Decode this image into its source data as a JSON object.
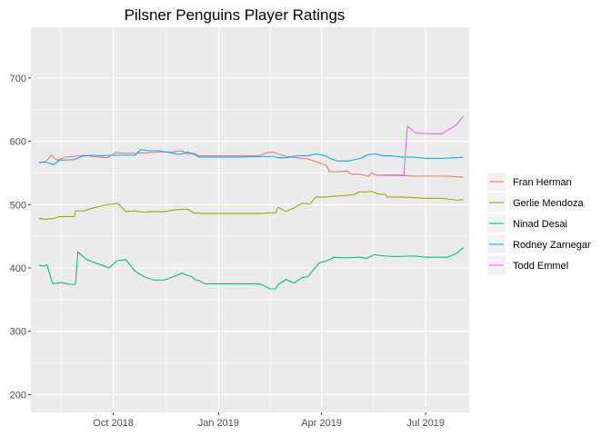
{
  "chart_data": {
    "type": "line",
    "title": "Pilsner Penguins Player Ratings",
    "xlabel": "",
    "ylabel": "",
    "xlim": [
      "2018-07-21",
      "2019-08-08"
    ],
    "ylim": [
      172,
      780
    ],
    "x_ticks": [
      {
        "date": "2018-10-01",
        "label": "Oct 2018"
      },
      {
        "date": "2019-01-01",
        "label": "Jan 2019"
      },
      {
        "date": "2019-04-01",
        "label": "Apr 2019"
      },
      {
        "date": "2019-07-01",
        "label": "Jul 2019"
      }
    ],
    "y_ticks": [
      200,
      300,
      400,
      500,
      600,
      700
    ],
    "grid": true,
    "legend_position": "right",
    "colors": {
      "panel_bg": "#EBEBEB",
      "grid": "#FFFFFF",
      "Fran Herman": "#F8766D",
      "Gerlie Mendoza": "#A3A500",
      "Ninad Desai": "#00BF7D",
      "Rodney Zarnegar": "#00B0F6",
      "Todd Emmel": "#E76BF3"
    },
    "series": [
      {
        "name": "Fran Herman",
        "points": [
          [
            "2018-07-28",
            566
          ],
          [
            "2018-08-03",
            568
          ],
          [
            "2018-08-08",
            578
          ],
          [
            "2018-08-13",
            570
          ],
          [
            "2018-08-20",
            575
          ],
          [
            "2018-08-28",
            576
          ],
          [
            "2018-09-05",
            578
          ],
          [
            "2018-09-12",
            576
          ],
          [
            "2018-09-19",
            575
          ],
          [
            "2018-09-26",
            574
          ],
          [
            "2018-10-03",
            582
          ],
          [
            "2018-10-10",
            581
          ],
          [
            "2018-10-20",
            581
          ],
          [
            "2018-10-31",
            582
          ],
          [
            "2018-11-10",
            583
          ],
          [
            "2018-11-20",
            583
          ],
          [
            "2018-11-30",
            585
          ],
          [
            "2018-12-05",
            580
          ],
          [
            "2018-12-10",
            581
          ],
          [
            "2018-12-15",
            577
          ],
          [
            "2018-12-25",
            577
          ],
          [
            "2019-01-10",
            577
          ],
          [
            "2019-01-25",
            577
          ],
          [
            "2019-02-05",
            577
          ],
          [
            "2019-02-12",
            582
          ],
          [
            "2019-02-18",
            583
          ],
          [
            "2019-02-22",
            580
          ],
          [
            "2019-03-01",
            576
          ],
          [
            "2019-03-10",
            574
          ],
          [
            "2019-03-20",
            572
          ],
          [
            "2019-03-30",
            566
          ],
          [
            "2019-04-05",
            562
          ],
          [
            "2019-04-08",
            552
          ],
          [
            "2019-04-15",
            552
          ],
          [
            "2019-04-23",
            553
          ],
          [
            "2019-04-27",
            548
          ],
          [
            "2019-05-05",
            548
          ],
          [
            "2019-05-12",
            545
          ],
          [
            "2019-05-15",
            550
          ],
          [
            "2019-05-18",
            547
          ],
          [
            "2019-05-25",
            546
          ],
          [
            "2019-06-10",
            546
          ],
          [
            "2019-06-20",
            545
          ],
          [
            "2019-07-01",
            545
          ],
          [
            "2019-07-20",
            545
          ],
          [
            "2019-07-28",
            544
          ],
          [
            "2019-08-03",
            543
          ]
        ]
      },
      {
        "name": "Gerlie Mendoza",
        "points": [
          [
            "2018-07-28",
            478
          ],
          [
            "2018-08-03",
            477
          ],
          [
            "2018-08-10",
            478
          ],
          [
            "2018-08-15",
            481
          ],
          [
            "2018-08-22",
            481
          ],
          [
            "2018-08-28",
            481
          ],
          [
            "2018-08-29",
            490
          ],
          [
            "2018-09-05",
            490
          ],
          [
            "2018-09-12",
            494
          ],
          [
            "2018-09-19",
            497
          ],
          [
            "2018-09-26",
            500
          ],
          [
            "2018-10-05",
            502
          ],
          [
            "2018-10-12",
            489
          ],
          [
            "2018-10-20",
            490
          ],
          [
            "2018-10-28",
            488
          ],
          [
            "2018-11-05",
            489
          ],
          [
            "2018-11-15",
            489
          ],
          [
            "2018-11-25",
            492
          ],
          [
            "2018-12-05",
            493
          ],
          [
            "2018-12-10",
            487
          ],
          [
            "2018-12-20",
            486
          ],
          [
            "2019-01-05",
            486
          ],
          [
            "2019-01-20",
            486
          ],
          [
            "2019-02-05",
            486
          ],
          [
            "2019-02-15",
            487
          ],
          [
            "2019-02-20",
            487
          ],
          [
            "2019-02-22",
            496
          ],
          [
            "2019-03-01",
            489
          ],
          [
            "2019-03-08",
            495
          ],
          [
            "2019-03-15",
            502
          ],
          [
            "2019-03-22",
            501
          ],
          [
            "2019-03-27",
            512
          ],
          [
            "2019-04-05",
            512
          ],
          [
            "2019-04-10",
            513
          ],
          [
            "2019-04-20",
            514
          ],
          [
            "2019-04-30",
            516
          ],
          [
            "2019-05-03",
            520
          ],
          [
            "2019-05-10",
            520
          ],
          [
            "2019-05-15",
            521
          ],
          [
            "2019-05-20",
            517
          ],
          [
            "2019-05-27",
            516
          ],
          [
            "2019-05-28",
            512
          ],
          [
            "2019-06-10",
            512
          ],
          [
            "2019-06-20",
            511
          ],
          [
            "2019-07-01",
            510
          ],
          [
            "2019-07-15",
            510
          ],
          [
            "2019-07-28",
            507
          ],
          [
            "2019-08-03",
            508
          ]
        ]
      },
      {
        "name": "Ninad Desai",
        "points": [
          [
            "2018-07-28",
            404
          ],
          [
            "2018-08-01",
            403
          ],
          [
            "2018-08-04",
            405
          ],
          [
            "2018-08-09",
            375
          ],
          [
            "2018-08-17",
            377
          ],
          [
            "2018-08-24",
            374
          ],
          [
            "2018-08-29",
            374
          ],
          [
            "2018-08-31",
            425
          ],
          [
            "2018-09-08",
            413
          ],
          [
            "2018-09-15",
            408
          ],
          [
            "2018-09-22",
            404
          ],
          [
            "2018-09-27",
            400
          ],
          [
            "2018-10-05",
            412
          ],
          [
            "2018-10-12",
            413
          ],
          [
            "2018-10-20",
            395
          ],
          [
            "2018-10-28",
            386
          ],
          [
            "2018-11-05",
            381
          ],
          [
            "2018-11-15",
            381
          ],
          [
            "2018-11-25",
            388
          ],
          [
            "2018-11-30",
            392
          ],
          [
            "2018-12-05",
            388
          ],
          [
            "2018-12-08",
            387
          ],
          [
            "2018-12-12",
            381
          ],
          [
            "2018-12-15",
            380
          ],
          [
            "2018-12-20",
            375
          ],
          [
            "2019-01-05",
            375
          ],
          [
            "2019-01-20",
            375
          ],
          [
            "2019-02-05",
            375
          ],
          [
            "2019-02-10",
            372
          ],
          [
            "2019-02-15",
            367
          ],
          [
            "2019-02-20",
            367
          ],
          [
            "2019-02-22",
            374
          ],
          [
            "2019-03-01",
            382
          ],
          [
            "2019-03-08",
            376
          ],
          [
            "2019-03-15",
            385
          ],
          [
            "2019-03-20",
            386
          ],
          [
            "2019-03-30",
            408
          ],
          [
            "2019-04-05",
            411
          ],
          [
            "2019-04-12",
            417
          ],
          [
            "2019-04-20",
            416
          ],
          [
            "2019-05-05",
            417
          ],
          [
            "2019-05-10",
            415
          ],
          [
            "2019-05-17",
            421
          ],
          [
            "2019-05-25",
            419
          ],
          [
            "2019-06-05",
            418
          ],
          [
            "2019-06-20",
            419
          ],
          [
            "2019-07-01",
            417
          ],
          [
            "2019-07-20",
            417
          ],
          [
            "2019-07-28",
            423
          ],
          [
            "2019-08-03",
            432
          ]
        ]
      },
      {
        "name": "Rodney Zarnegar",
        "points": [
          [
            "2018-07-28",
            567
          ],
          [
            "2018-08-03",
            567
          ],
          [
            "2018-08-10",
            563
          ],
          [
            "2018-08-15",
            570
          ],
          [
            "2018-08-28",
            571
          ],
          [
            "2018-09-05",
            577
          ],
          [
            "2018-09-12",
            578
          ],
          [
            "2018-09-20",
            577
          ],
          [
            "2018-10-01",
            578
          ],
          [
            "2018-10-10",
            578
          ],
          [
            "2018-10-20",
            578
          ],
          [
            "2018-10-25",
            587
          ],
          [
            "2018-11-01",
            585
          ],
          [
            "2018-11-10",
            585
          ],
          [
            "2018-11-20",
            582
          ],
          [
            "2018-11-28",
            579
          ],
          [
            "2018-12-05",
            583
          ],
          [
            "2018-12-10",
            580
          ],
          [
            "2018-12-15",
            575
          ],
          [
            "2019-01-01",
            575
          ],
          [
            "2019-01-20",
            575
          ],
          [
            "2019-02-10",
            576
          ],
          [
            "2019-02-18",
            576
          ],
          [
            "2019-02-22",
            574
          ],
          [
            "2019-03-01",
            574
          ],
          [
            "2019-03-10",
            577
          ],
          [
            "2019-03-20",
            577
          ],
          [
            "2019-03-27",
            580
          ],
          [
            "2019-04-05",
            577
          ],
          [
            "2019-04-08",
            573
          ],
          [
            "2019-04-15",
            569
          ],
          [
            "2019-04-25",
            569
          ],
          [
            "2019-05-05",
            573
          ],
          [
            "2019-05-12",
            579
          ],
          [
            "2019-05-18",
            580
          ],
          [
            "2019-05-25",
            577
          ],
          [
            "2019-06-01",
            577
          ],
          [
            "2019-06-10",
            575
          ],
          [
            "2019-06-20",
            575
          ],
          [
            "2019-07-01",
            573
          ],
          [
            "2019-07-15",
            573
          ],
          [
            "2019-07-28",
            574
          ],
          [
            "2019-08-03",
            575
          ]
        ]
      },
      {
        "name": "Todd Emmel",
        "points": [
          [
            "2019-05-20",
            546
          ],
          [
            "2019-05-28",
            547
          ],
          [
            "2019-06-10",
            547
          ],
          [
            "2019-06-12",
            547
          ],
          [
            "2019-06-15",
            624
          ],
          [
            "2019-06-22",
            613
          ],
          [
            "2019-07-05",
            612
          ],
          [
            "2019-07-15",
            612
          ],
          [
            "2019-07-28",
            626
          ],
          [
            "2019-08-03",
            640
          ]
        ]
      }
    ]
  }
}
